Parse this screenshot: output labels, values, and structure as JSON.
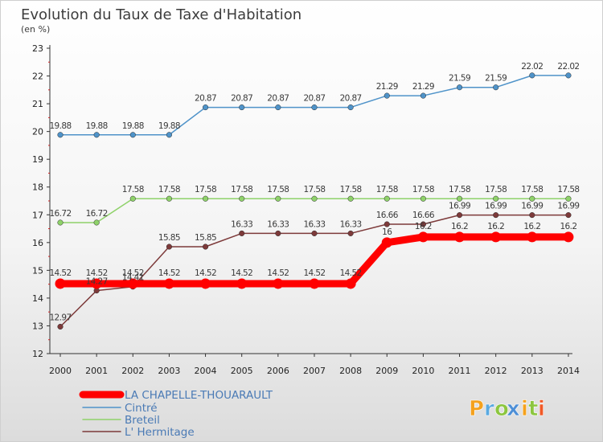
{
  "chart_data": {
    "type": "line",
    "title": "Evolution du Taux de Taxe d'Habitation",
    "subtitle": "(en %)",
    "x": [
      "2000",
      "2001",
      "2002",
      "2003",
      "2004",
      "2005",
      "2006",
      "2007",
      "2008",
      "2009",
      "2010",
      "2011",
      "2012",
      "2013",
      "2014"
    ],
    "ylim": [
      12,
      23
    ],
    "yticks": [
      "12",
      "13",
      "14",
      "15",
      "16",
      "17",
      "18",
      "19",
      "20",
      "21",
      "22",
      "23"
    ],
    "grid": false,
    "legend_position": "bottom-left",
    "series": [
      {
        "name": "LA CHAPELLE-THOUARAULT",
        "color": "#ff0000",
        "values": [
          14.52,
          14.52,
          14.52,
          14.52,
          14.52,
          14.52,
          14.52,
          14.52,
          14.52,
          16,
          16.2,
          16.2,
          16.2,
          16.2,
          16.2
        ],
        "labels": [
          "14.52",
          "14.52",
          "14.52",
          "14.52",
          "14.52",
          "14.52",
          "14.52",
          "14.52",
          "14.52",
          "16",
          "16.2",
          "16.2",
          "16.2",
          "16.2",
          "16.2"
        ]
      },
      {
        "name": "Cintré",
        "color": "#4f93c9",
        "values": [
          19.88,
          19.88,
          19.88,
          19.88,
          20.87,
          20.87,
          20.87,
          20.87,
          20.87,
          21.29,
          21.29,
          21.59,
          21.59,
          22.02,
          22.02
        ],
        "labels": [
          "19.88",
          "19.88",
          "19.88",
          "19.88",
          "20.87",
          "20.87",
          "20.87",
          "20.87",
          "20.87",
          "21.29",
          "21.29",
          "21.59",
          "21.59",
          "22.02",
          "22.02"
        ]
      },
      {
        "name": "Breteil",
        "color": "#8fd26a",
        "values": [
          16.72,
          16.72,
          17.58,
          17.58,
          17.58,
          17.58,
          17.58,
          17.58,
          17.58,
          17.58,
          17.58,
          17.58,
          17.58,
          17.58,
          17.58
        ],
        "labels": [
          "16.72",
          "16.72",
          "17.58",
          "17.58",
          "17.58",
          "17.58",
          "17.58",
          "17.58",
          "17.58",
          "17.58",
          "17.58",
          "17.58",
          "17.58",
          "17.58",
          "17.58"
        ]
      },
      {
        "name": "L' Hermitage",
        "color": "#7d3a3a",
        "values": [
          12.97,
          14.27,
          14.41,
          15.85,
          15.85,
          16.33,
          16.33,
          16.33,
          16.33,
          16.66,
          16.66,
          16.99,
          16.99,
          16.99,
          16.99
        ],
        "labels": [
          "12.97",
          "14.27",
          "14.41",
          "15.85",
          "15.85",
          "16.33",
          "16.33",
          "16.33",
          "16.33",
          "16.66",
          "16.66",
          "16.99",
          "16.99",
          "16.99",
          "16.99"
        ]
      }
    ]
  },
  "logo": {
    "letters": [
      "P",
      "r",
      "o",
      "x",
      "i",
      "t",
      "i"
    ],
    "colors": [
      "#f4a11d",
      "#5aa9e0",
      "#8cc63f",
      "#4e8fd6",
      "#f4a11d",
      "#8cc63f",
      "#f05a28"
    ]
  }
}
